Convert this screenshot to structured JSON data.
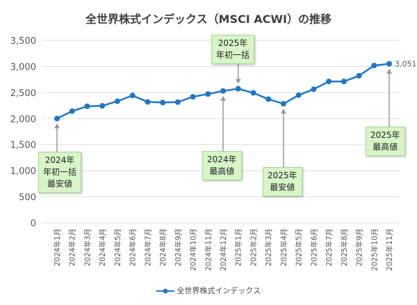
{
  "chart_data": {
    "type": "line",
    "title": "全世界株式インデックス（MSCI ACWI）の推移",
    "categories": [
      "2024年1月",
      "2024年2月",
      "2024年3月",
      "2024年4月",
      "2024年5月",
      "2024年6月",
      "2024年7月",
      "2024年8月",
      "2024年9月",
      "2024年10月",
      "2024年11月",
      "2024年12月",
      "2025年1月",
      "2025年2月",
      "2025年3月",
      "2025年4月",
      "2025年5月",
      "2025年6月",
      "2025年7月",
      "2025年8月",
      "2025年9月",
      "2025年10月",
      "2025年11月"
    ],
    "series": [
      {
        "name": "全世界株式インデックス",
        "color": "#1f77c4",
        "values": [
          2000,
          2142,
          2236,
          2244,
          2333,
          2444,
          2320,
          2307,
          2316,
          2418,
          2471,
          2529,
          2573,
          2493,
          2373,
          2284,
          2449,
          2564,
          2711,
          2711,
          2822,
          3018,
          3051
        ]
      }
    ],
    "ylim": [
      0,
      3500
    ],
    "yticks": [
      "0",
      "500",
      "1,000",
      "1,500",
      "2,000",
      "2,500",
      "3,000",
      "3,500"
    ],
    "grid": true,
    "legend": "bottom",
    "data_label": "3,051",
    "annotations": [
      {
        "text": "2024年\n年初一括\n最安値",
        "index": 0,
        "position": "below"
      },
      {
        "text": "2024年\n最高値",
        "index": 11,
        "position": "below"
      },
      {
        "text": "2025年\n年初一括",
        "index": 12,
        "position": "above"
      },
      {
        "text": "2025年\n最安値",
        "index": 15,
        "position": "below"
      },
      {
        "text": "2025年\n最高値",
        "index": 22,
        "position": "below"
      }
    ]
  }
}
